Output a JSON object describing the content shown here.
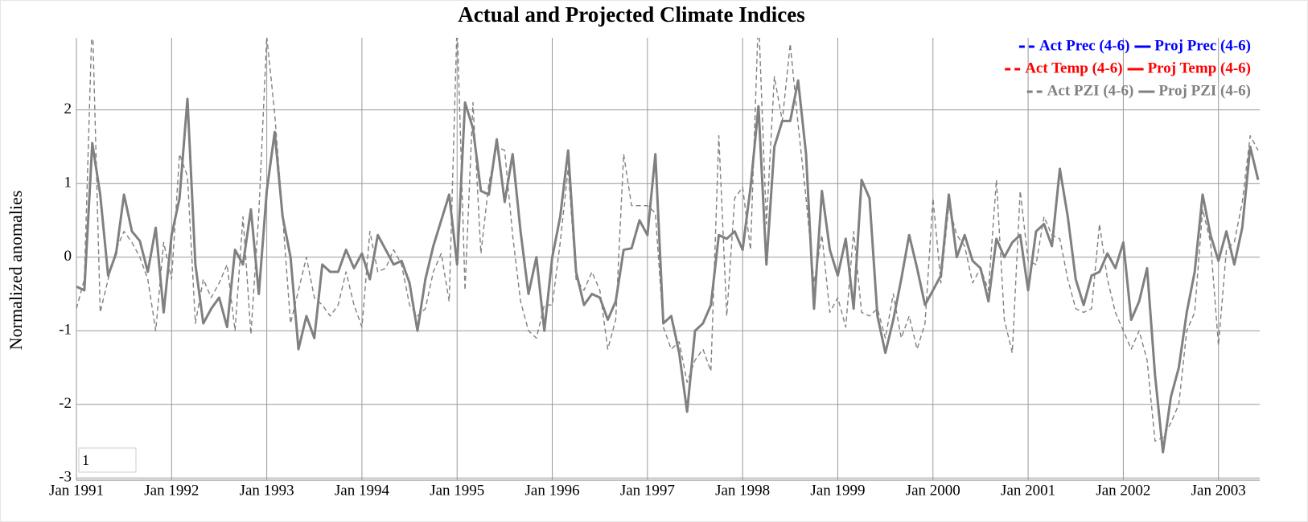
{
  "chart_data": {
    "type": "line",
    "title": "Actual and Projected Climate Indices",
    "y_label": "Normalized anomalies",
    "annotations": [
      "1"
    ],
    "x": [
      "1991-01",
      "1991-02",
      "1991-03",
      "1991-04",
      "1991-05",
      "1991-06",
      "1991-07",
      "1991-08",
      "1991-09",
      "1991-10",
      "1991-11",
      "1991-12",
      "1992-01",
      "1992-02",
      "1992-03",
      "1992-04",
      "1992-05",
      "1992-06",
      "1992-07",
      "1992-08",
      "1992-09",
      "1992-10",
      "1992-11",
      "1992-12",
      "1993-01",
      "1993-02",
      "1993-03",
      "1993-04",
      "1993-05",
      "1993-06",
      "1993-07",
      "1993-08",
      "1993-09",
      "1993-10",
      "1993-11",
      "1993-12",
      "1994-01",
      "1994-02",
      "1994-03",
      "1994-04",
      "1994-05",
      "1994-06",
      "1994-07",
      "1994-08",
      "1994-09",
      "1994-10",
      "1994-11",
      "1994-12",
      "1995-01",
      "1995-02",
      "1995-03",
      "1995-04",
      "1995-05",
      "1995-06",
      "1995-07",
      "1995-08",
      "1995-09",
      "1995-10",
      "1995-11",
      "1995-12",
      "1996-01",
      "1996-02",
      "1996-03",
      "1996-04",
      "1996-05",
      "1996-06",
      "1996-07",
      "1996-08",
      "1996-09",
      "1996-10",
      "1996-11",
      "1996-12",
      "1997-01",
      "1997-02",
      "1997-03",
      "1997-04",
      "1997-05",
      "1997-06",
      "1997-07",
      "1997-08",
      "1997-09",
      "1997-10",
      "1997-11",
      "1997-12",
      "1998-01",
      "1998-02",
      "1998-03",
      "1998-04",
      "1998-05",
      "1998-06",
      "1998-07",
      "1998-08",
      "1998-09",
      "1998-10",
      "1998-11",
      "1998-12",
      "1999-01",
      "1999-02",
      "1999-03",
      "1999-04",
      "1999-05",
      "1999-06",
      "1999-07",
      "1999-08",
      "1999-09",
      "1999-10",
      "1999-11",
      "1999-12",
      "2000-01",
      "2000-02",
      "2000-03",
      "2000-04",
      "2000-05",
      "2000-06",
      "2000-07",
      "2000-08",
      "2000-09",
      "2000-10",
      "2000-11",
      "2000-12",
      "2001-01",
      "2001-02",
      "2001-03",
      "2001-04",
      "2001-05",
      "2001-06",
      "2001-07",
      "2001-08",
      "2001-09",
      "2001-10",
      "2001-11",
      "2001-12",
      "2002-01",
      "2002-02",
      "2002-03",
      "2002-04",
      "2002-05",
      "2002-06",
      "2002-07",
      "2002-08",
      "2002-09",
      "2002-10",
      "2002-11",
      "2002-12",
      "2003-01",
      "2003-02",
      "2003-03",
      "2003-04",
      "2003-05",
      "2003-06"
    ],
    "xlim": [
      "1991-01",
      "2003-06"
    ],
    "xticks": [
      {
        "value": "1991-01",
        "label": "Jan 1991"
      },
      {
        "value": "1992-01",
        "label": "Jan 1992"
      },
      {
        "value": "1993-01",
        "label": "Jan 1993"
      },
      {
        "value": "1994-01",
        "label": "Jan 1994"
      },
      {
        "value": "1995-01",
        "label": "Jan 1995"
      },
      {
        "value": "1996-01",
        "label": "Jan 1996"
      },
      {
        "value": "1997-01",
        "label": "Jan 1997"
      },
      {
        "value": "1998-01",
        "label": "Jan 1998"
      },
      {
        "value": "1999-01",
        "label": "Jan 1999"
      },
      {
        "value": "2000-01",
        "label": "Jan 2000"
      },
      {
        "value": "2001-01",
        "label": "Jan 2001"
      },
      {
        "value": "2002-01",
        "label": "Jan 2002"
      },
      {
        "value": "2003-01",
        "label": "Jan 2003"
      }
    ],
    "ylim": [
      -3.03,
      2.98
    ],
    "yticks": [
      -3,
      -2,
      -1,
      0,
      1,
      2
    ],
    "grid": true,
    "legend": "top-right",
    "series": [
      {
        "name": "Act Prec (4-6)",
        "color": "#0000ff",
        "style": "dashed",
        "values": [
          null,
          null,
          null,
          null,
          null,
          null,
          null,
          null,
          null,
          null,
          null,
          null,
          null,
          null,
          null,
          null,
          null,
          null,
          null,
          null,
          null,
          null,
          null,
          null,
          null,
          null,
          null,
          null,
          null,
          null,
          null,
          null,
          null,
          null,
          null,
          null,
          null,
          null,
          null,
          null,
          null,
          null,
          null,
          null,
          null,
          null,
          null,
          null,
          null,
          null,
          null,
          null,
          null,
          null,
          null,
          null,
          null,
          null,
          null,
          null,
          null,
          null,
          null,
          null,
          null,
          null,
          null,
          null,
          null,
          null,
          null,
          null,
          null,
          null,
          null,
          null,
          null,
          null,
          null,
          null,
          null,
          null,
          null,
          null,
          null,
          null,
          null,
          null,
          null,
          null,
          null,
          null,
          null,
          null,
          null,
          null,
          null,
          null,
          null,
          null,
          null,
          null,
          null,
          null,
          null,
          null,
          null,
          null,
          null,
          null,
          null,
          null,
          null,
          null,
          null,
          null,
          null,
          null,
          null,
          null,
          null,
          null,
          null,
          null,
          null,
          null,
          null,
          null,
          null,
          null,
          null,
          null,
          null,
          null,
          null,
          null,
          null,
          null,
          null,
          null,
          null,
          null,
          null,
          null,
          null,
          null,
          null,
          null,
          null,
          null
        ]
      },
      {
        "name": "Proj Prec (4-6)",
        "color": "#0000ff",
        "style": "solid",
        "values": [
          null,
          null,
          null,
          null,
          null,
          null,
          null,
          null,
          null,
          null,
          null,
          null,
          null,
          null,
          null,
          null,
          null,
          null,
          null,
          null,
          null,
          null,
          null,
          null,
          null,
          null,
          null,
          null,
          null,
          null,
          null,
          null,
          null,
          null,
          null,
          null,
          null,
          null,
          null,
          null,
          null,
          null,
          null,
          null,
          null,
          null,
          null,
          null,
          null,
          null,
          null,
          null,
          null,
          null,
          null,
          null,
          null,
          null,
          null,
          null,
          null,
          null,
          null,
          null,
          null,
          null,
          null,
          null,
          null,
          null,
          null,
          null,
          null,
          null,
          null,
          null,
          null,
          null,
          null,
          null,
          null,
          null,
          null,
          null,
          null,
          null,
          null,
          null,
          null,
          null,
          null,
          null,
          null,
          null,
          null,
          null,
          null,
          null,
          null,
          null,
          null,
          null,
          null,
          null,
          null,
          null,
          null,
          null,
          null,
          null,
          null,
          null,
          null,
          null,
          null,
          null,
          null,
          null,
          null,
          null,
          null,
          null,
          null,
          null,
          null,
          null,
          null,
          null,
          null,
          null,
          null,
          null,
          null,
          null,
          null,
          null,
          null,
          null,
          null,
          null,
          null,
          null,
          null,
          null,
          null,
          null,
          null,
          null,
          null,
          null
        ]
      },
      {
        "name": "Act Temp (4-6)",
        "color": "#ff0000",
        "style": "dashed",
        "values": [
          null,
          null,
          null,
          null,
          null,
          null,
          null,
          null,
          null,
          null,
          null,
          null,
          null,
          null,
          null,
          null,
          null,
          null,
          null,
          null,
          null,
          null,
          null,
          null,
          null,
          null,
          null,
          null,
          null,
          null,
          null,
          null,
          null,
          null,
          null,
          null,
          null,
          null,
          null,
          null,
          null,
          null,
          null,
          null,
          null,
          null,
          null,
          null,
          null,
          null,
          null,
          null,
          null,
          null,
          null,
          null,
          null,
          null,
          null,
          null,
          null,
          null,
          null,
          null,
          null,
          null,
          null,
          null,
          null,
          null,
          null,
          null,
          null,
          null,
          null,
          null,
          null,
          null,
          null,
          null,
          null,
          null,
          null,
          null,
          null,
          null,
          null,
          null,
          null,
          null,
          null,
          null,
          null,
          null,
          null,
          null,
          null,
          null,
          null,
          null,
          null,
          null,
          null,
          null,
          null,
          null,
          null,
          null,
          null,
          null,
          null,
          null,
          null,
          null,
          null,
          null,
          null,
          null,
          null,
          null,
          null,
          null,
          null,
          null,
          null,
          null,
          null,
          null,
          null,
          null,
          null,
          null,
          null,
          null,
          null,
          null,
          null,
          null,
          null,
          null,
          null,
          null,
          null,
          null,
          null,
          null,
          null,
          null,
          null,
          null
        ]
      },
      {
        "name": "Proj Temp (4-6)",
        "color": "#ff0000",
        "style": "solid",
        "values": [
          null,
          null,
          null,
          null,
          null,
          null,
          null,
          null,
          null,
          null,
          null,
          null,
          null,
          null,
          null,
          null,
          null,
          null,
          null,
          null,
          null,
          null,
          null,
          null,
          null,
          null,
          null,
          null,
          null,
          null,
          null,
          null,
          null,
          null,
          null,
          null,
          null,
          null,
          null,
          null,
          null,
          null,
          null,
          null,
          null,
          null,
          null,
          null,
          null,
          null,
          null,
          null,
          null,
          null,
          null,
          null,
          null,
          null,
          null,
          null,
          null,
          null,
          null,
          null,
          null,
          null,
          null,
          null,
          null,
          null,
          null,
          null,
          null,
          null,
          null,
          null,
          null,
          null,
          null,
          null,
          null,
          null,
          null,
          null,
          null,
          null,
          null,
          null,
          null,
          null,
          null,
          null,
          null,
          null,
          null,
          null,
          null,
          null,
          null,
          null,
          null,
          null,
          null,
          null,
          null,
          null,
          null,
          null,
          null,
          null,
          null,
          null,
          null,
          null,
          null,
          null,
          null,
          null,
          null,
          null,
          null,
          null,
          null,
          null,
          null,
          null,
          null,
          null,
          null,
          null,
          null,
          null,
          null,
          null,
          null,
          null,
          null,
          null,
          null,
          null,
          null,
          null,
          null,
          null,
          null,
          null,
          null,
          null,
          null,
          null
        ]
      },
      {
        "name": "Act PZI (4-6)",
        "color": "#808080",
        "style": "dashed",
        "values": [
          -0.7,
          -0.3,
          3.3,
          -0.75,
          -0.3,
          0.1,
          0.35,
          0.2,
          0.0,
          -0.3,
          -1.0,
          0.2,
          -0.3,
          1.4,
          1.1,
          -0.9,
          -0.3,
          -0.55,
          -0.35,
          -0.1,
          -1.0,
          0.55,
          -1.05,
          0.6,
          3.0,
          1.95,
          0.55,
          -0.9,
          -0.45,
          0.0,
          -0.55,
          -0.65,
          -0.8,
          -0.65,
          -0.2,
          -0.65,
          -0.95,
          0.35,
          -0.2,
          -0.15,
          0.1,
          -0.1,
          -0.65,
          -0.8,
          -0.7,
          -0.2,
          0.05,
          -0.6,
          3.2,
          -0.45,
          2.1,
          0.05,
          1.0,
          1.5,
          1.45,
          0.3,
          -0.6,
          -1.0,
          -1.1,
          -0.65,
          -0.65,
          0.2,
          1.2,
          -0.3,
          -0.45,
          -0.2,
          -0.45,
          -1.25,
          -0.85,
          1.4,
          0.7,
          0.7,
          0.7,
          0.6,
          -0.95,
          -1.25,
          -1.15,
          -1.7,
          -1.4,
          -1.25,
          -1.55,
          1.65,
          -0.8,
          0.8,
          0.95,
          0.1,
          3.3,
          0.45,
          2.45,
          1.85,
          2.9,
          1.8,
          0.8,
          -0.35,
          0.3,
          -0.75,
          -0.55,
          -0.95,
          0.35,
          -0.75,
          -0.8,
          -0.7,
          -1.1,
          -0.5,
          -1.1,
          -0.8,
          -1.25,
          -0.9,
          0.8,
          -0.35,
          0.7,
          0.3,
          0.15,
          -0.35,
          -0.15,
          -0.45,
          1.05,
          -0.85,
          -1.3,
          0.9,
          -0.05,
          -0.1,
          0.55,
          0.3,
          0.25,
          -0.3,
          -0.7,
          -0.75,
          -0.7,
          0.45,
          -0.3,
          -0.75,
          -1.0,
          -1.25,
          -1.0,
          -1.4,
          -2.5,
          -2.45,
          -2.25,
          -2.0,
          -1.0,
          -0.75,
          0.65,
          0.2,
          -1.2,
          0.1,
          0.2,
          0.75,
          1.65,
          1.45
        ]
      },
      {
        "name": "Proj PZI (4-6)",
        "color": "#808080",
        "style": "solid",
        "values": [
          -0.4,
          -0.45,
          1.55,
          0.85,
          -0.25,
          0.05,
          0.85,
          0.35,
          0.22,
          -0.2,
          0.4,
          -0.75,
          0.3,
          0.8,
          2.15,
          -0.1,
          -0.9,
          -0.7,
          -0.55,
          -0.95,
          0.1,
          -0.1,
          0.65,
          -0.5,
          0.9,
          1.7,
          0.55,
          0.0,
          -1.25,
          -0.8,
          -1.1,
          -0.1,
          -0.2,
          -0.2,
          0.1,
          -0.15,
          0.05,
          -0.3,
          0.3,
          0.1,
          -0.1,
          -0.05,
          -0.35,
          -1.0,
          -0.3,
          0.15,
          0.5,
          0.85,
          -0.1,
          2.1,
          1.75,
          0.9,
          0.85,
          1.6,
          0.75,
          1.4,
          0.35,
          -0.5,
          0.0,
          -1.0,
          0.0,
          0.55,
          1.45,
          -0.2,
          -0.65,
          -0.5,
          -0.55,
          -0.85,
          -0.6,
          0.1,
          0.12,
          0.5,
          0.3,
          1.4,
          -0.9,
          -0.8,
          -1.3,
          -2.1,
          -1.0,
          -0.9,
          -0.65,
          0.3,
          0.25,
          0.35,
          0.1,
          0.95,
          2.05,
          -0.1,
          1.5,
          1.85,
          1.85,
          2.4,
          1.4,
          -0.7,
          0.9,
          0.1,
          -0.25,
          0.25,
          -0.7,
          1.05,
          0.8,
          -0.8,
          -1.3,
          -0.85,
          -0.3,
          0.3,
          -0.15,
          -0.65,
          -0.45,
          -0.25,
          0.85,
          0.0,
          0.3,
          -0.05,
          -0.15,
          -0.6,
          0.25,
          0.0,
          0.2,
          0.3,
          -0.45,
          0.35,
          0.45,
          0.15,
          1.2,
          0.55,
          -0.3,
          -0.65,
          -0.25,
          -0.2,
          0.05,
          -0.15,
          0.2,
          -0.85,
          -0.6,
          -0.15,
          -1.6,
          -2.65,
          -1.9,
          -1.5,
          -0.75,
          -0.2,
          0.85,
          0.3,
          -0.05,
          0.35,
          -0.1,
          0.4,
          1.5,
          1.05
        ]
      }
    ]
  }
}
